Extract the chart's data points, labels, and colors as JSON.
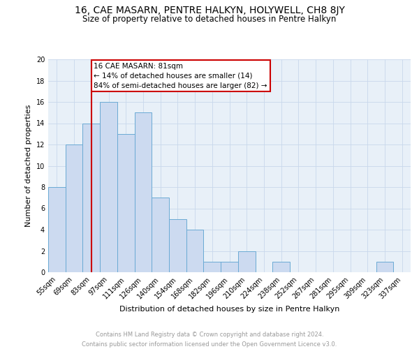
{
  "title": "16, CAE MASARN, PENTRE HALKYN, HOLYWELL, CH8 8JY",
  "subtitle": "Size of property relative to detached houses in Pentre Halkyn",
  "xlabel": "Distribution of detached houses by size in Pentre Halkyn",
  "ylabel": "Number of detached properties",
  "bins": [
    "55sqm",
    "69sqm",
    "83sqm",
    "97sqm",
    "111sqm",
    "126sqm",
    "140sqm",
    "154sqm",
    "168sqm",
    "182sqm",
    "196sqm",
    "210sqm",
    "224sqm",
    "238sqm",
    "252sqm",
    "267sqm",
    "281sqm",
    "295sqm",
    "309sqm",
    "323sqm",
    "337sqm"
  ],
  "values": [
    8,
    12,
    14,
    16,
    13,
    15,
    7,
    5,
    4,
    1,
    1,
    2,
    0,
    1,
    0,
    0,
    0,
    0,
    0,
    1,
    0
  ],
  "bar_color": "#ccdaf0",
  "bar_edge_color": "#6aaad4",
  "bar_width": 1.0,
  "vline_x_idx": 2,
  "vline_color": "#cc0000",
  "annotation_line1": "16 CAE MASARN: 81sqm",
  "annotation_line2": "← 14% of detached houses are smaller (14)",
  "annotation_line3": "84% of semi-detached houses are larger (82) →",
  "annotation_box_color": "#ffffff",
  "annotation_box_edgecolor": "#cc0000",
  "ylim": [
    0,
    20
  ],
  "yticks": [
    0,
    2,
    4,
    6,
    8,
    10,
    12,
    14,
    16,
    18,
    20
  ],
  "grid_color": "#c8d8eb",
  "background_color": "#e8f0f8",
  "footer_line1": "Contains HM Land Registry data © Crown copyright and database right 2024.",
  "footer_line2": "Contains public sector information licensed under the Open Government Licence v3.0.",
  "footer_color": "#999999",
  "title_fontsize": 10,
  "subtitle_fontsize": 8.5,
  "ylabel_fontsize": 8,
  "xlabel_fontsize": 8,
  "tick_fontsize": 7,
  "annot_fontsize": 7.5
}
